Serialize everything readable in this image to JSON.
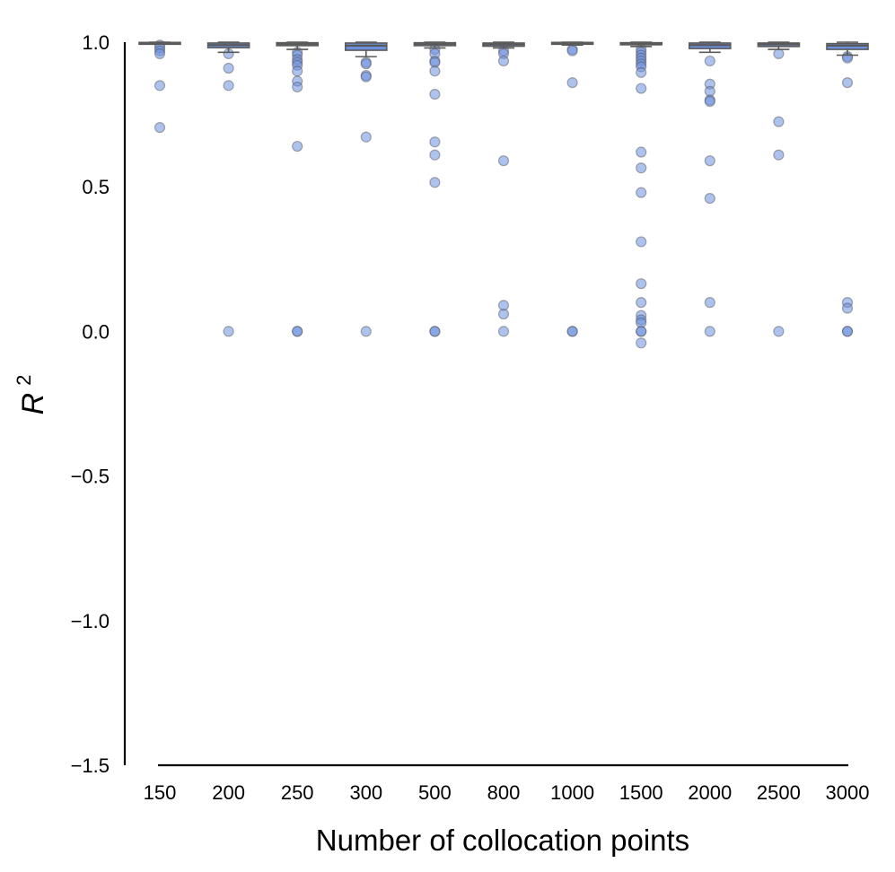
{
  "chart_data": {
    "type": "box",
    "title": "",
    "xlabel": "Number of collocation points",
    "ylabel": "R",
    "ylabel_superscript": "2",
    "ylim": [
      -1.5,
      1.0
    ],
    "yticks": [
      1.0,
      0.5,
      0.0,
      -0.5,
      -1.0,
      -1.5
    ],
    "ytick_labels": [
      "1.0",
      "0.5",
      "0.0",
      "−0.5",
      "−1.0",
      "−1.5"
    ],
    "grid": false,
    "colors": {
      "box_fill": "#6c8fe0",
      "box_edge": "#5a5a5a",
      "axis": "#000000"
    },
    "categories": [
      "150",
      "200",
      "250",
      "300",
      "500",
      "800",
      "1000",
      "1500",
      "2000",
      "2500",
      "3000"
    ],
    "boxes": [
      {
        "whisker_low": 0.995,
        "q1": 0.997,
        "median": 0.998,
        "q3": 0.999,
        "whisker_high": 1.0,
        "outliers": [
          0.99,
          0.98,
          0.97,
          0.96,
          0.85,
          0.705
        ]
      },
      {
        "whisker_low": 0.965,
        "q1": 0.981,
        "median": 0.99,
        "q3": 0.997,
        "whisker_high": 1.0,
        "outliers": [
          0.96,
          0.91,
          0.85,
          0.0
        ]
      },
      {
        "whisker_low": 0.975,
        "q1": 0.988,
        "median": 0.994,
        "q3": 0.998,
        "whisker_high": 1.0,
        "outliers": [
          0.965,
          0.955,
          0.94,
          0.93,
          0.92,
          0.9,
          0.865,
          0.845,
          0.64,
          0.0,
          0.0
        ]
      },
      {
        "whisker_low": 0.95,
        "q1": 0.972,
        "median": 0.988,
        "q3": 0.997,
        "whisker_high": 1.0,
        "outliers": [
          0.93,
          0.925,
          0.885,
          0.88,
          0.672,
          0.0
        ]
      },
      {
        "whisker_low": 0.98,
        "q1": 0.988,
        "median": 0.994,
        "q3": 0.998,
        "whisker_high": 1.0,
        "outliers": [
          0.975,
          0.96,
          0.935,
          0.93,
          0.9,
          0.82,
          0.655,
          0.61,
          0.515,
          0.0,
          0.0
        ]
      },
      {
        "whisker_low": 0.98,
        "q1": 0.986,
        "median": 0.992,
        "q3": 0.997,
        "whisker_high": 1.0,
        "outliers": [
          0.97,
          0.96,
          0.935,
          0.59,
          0.09,
          0.06,
          0.0
        ]
      },
      {
        "whisker_low": 0.99,
        "q1": 0.994,
        "median": 0.997,
        "q3": 0.999,
        "whisker_high": 1.0,
        "outliers": [
          0.975,
          0.97,
          0.86,
          0.0,
          0.0
        ]
      },
      {
        "whisker_low": 0.985,
        "q1": 0.991,
        "median": 0.995,
        "q3": 0.998,
        "whisker_high": 1.0,
        "outliers": [
          0.975,
          0.965,
          0.955,
          0.945,
          0.935,
          0.925,
          0.915,
          0.895,
          0.84,
          0.62,
          0.565,
          0.48,
          0.31,
          0.165,
          0.1,
          0.055,
          0.04,
          0.03,
          0.0,
          0.0,
          -0.04
        ]
      },
      {
        "whisker_low": 0.965,
        "q1": 0.978,
        "median": 0.99,
        "q3": 0.997,
        "whisker_high": 1.0,
        "outliers": [
          0.935,
          0.855,
          0.83,
          0.8,
          0.795,
          0.59,
          0.46,
          0.1,
          0.0
        ]
      },
      {
        "whisker_low": 0.975,
        "q1": 0.985,
        "median": 0.992,
        "q3": 0.997,
        "whisker_high": 1.0,
        "outliers": [
          0.96,
          0.725,
          0.61,
          0.0
        ]
      },
      {
        "whisker_low": 0.955,
        "q1": 0.975,
        "median": 0.988,
        "q3": 0.995,
        "whisker_high": 1.0,
        "outliers": [
          0.95,
          0.945,
          0.86,
          0.1,
          0.08,
          0.0,
          0.0
        ]
      }
    ]
  }
}
